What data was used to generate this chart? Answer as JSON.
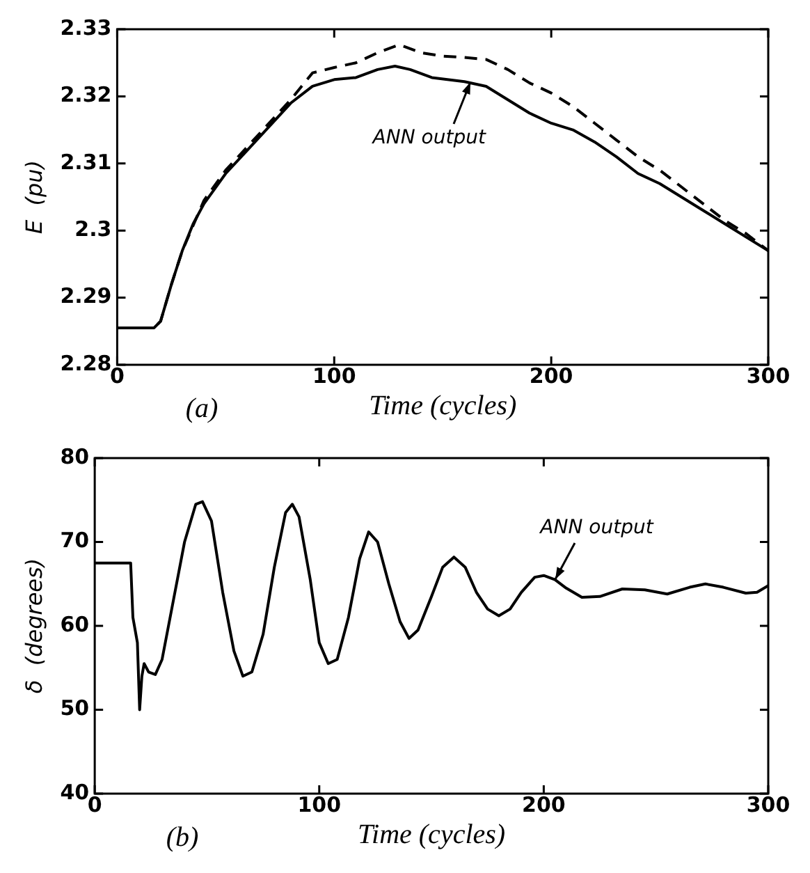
{
  "chart_data": [
    {
      "type": "line",
      "ylabel": "E  (pu)",
      "xlabel": "Time (cycles)",
      "xlim": [
        0,
        300
      ],
      "xticks": [
        0,
        100,
        200,
        300
      ],
      "ylim": [
        2.28,
        2.33
      ],
      "yticks": [
        2.28,
        2.29,
        2.3,
        2.31,
        2.32,
        2.33
      ],
      "grid": false,
      "marker": "none",
      "annotations": [
        "(a)",
        {
          "text": "ANN output",
          "x": 163,
          "y": 2.3222
        }
      ],
      "series": [
        {
          "color": "#000000",
          "line_style": "solid",
          "x": [
            0,
            17,
            20,
            25,
            30,
            35,
            40,
            50,
            60,
            70,
            80,
            90,
            100,
            110,
            120,
            128,
            135,
            145,
            160,
            170,
            180,
            190,
            200,
            210,
            220,
            230,
            240,
            250,
            260,
            270,
            280,
            290,
            300
          ],
          "values": [
            2.2855,
            2.2855,
            2.2865,
            2.292,
            2.297,
            2.301,
            2.304,
            2.3085,
            2.312,
            2.3155,
            2.319,
            2.3215,
            2.3225,
            2.3228,
            2.324,
            2.3245,
            2.324,
            2.3228,
            2.3222,
            2.3215,
            2.3195,
            2.3175,
            2.316,
            2.315,
            2.3132,
            2.311,
            2.3085,
            2.307,
            2.305,
            2.303,
            2.301,
            2.299,
            2.297
          ]
        },
        {
          "color": "#000000",
          "line_style": "dashed",
          "x": [
            0,
            17,
            20,
            25,
            30,
            40,
            50,
            60,
            70,
            80,
            90,
            100,
            110,
            120,
            130,
            140,
            150,
            160,
            170,
            180,
            190,
            200,
            210,
            220,
            230,
            240,
            250,
            260,
            270,
            280,
            290,
            300
          ],
          "values": [
            2.2855,
            2.2855,
            2.2865,
            2.292,
            2.297,
            2.3045,
            2.309,
            2.3125,
            2.316,
            2.3195,
            2.3235,
            2.3243,
            2.325,
            2.3265,
            2.3277,
            2.3265,
            2.326,
            2.3258,
            2.3255,
            2.324,
            2.322,
            2.3205,
            2.3185,
            2.316,
            2.3135,
            2.311,
            2.309,
            2.3065,
            2.304,
            2.3015,
            2.2995,
            2.297
          ]
        }
      ]
    },
    {
      "type": "line",
      "ylabel": "δ  (degrees)",
      "xlabel": "Time (cycles)",
      "xlim": [
        0,
        300
      ],
      "xticks": [
        0,
        100,
        200,
        300
      ],
      "ylim": [
        40,
        80
      ],
      "yticks": [
        40,
        50,
        60,
        70,
        80
      ],
      "grid": false,
      "marker": "none",
      "annotations": [
        "(b)",
        {
          "text": "ANN output",
          "x": 205,
          "y": 65.5
        }
      ],
      "series": [
        {
          "color": "#000000",
          "line_style": "solid",
          "x": [
            0,
            16,
            17,
            19,
            20,
            21,
            22,
            24,
            27,
            30,
            35,
            40,
            45,
            48,
            52,
            57,
            62,
            66,
            70,
            75,
            80,
            85,
            88,
            91,
            96,
            100,
            104,
            108,
            113,
            118,
            122,
            126,
            131,
            136,
            140,
            144,
            150,
            155,
            160,
            165,
            170,
            175,
            180,
            185,
            190,
            196,
            200,
            205,
            210,
            217,
            225,
            235,
            245,
            255,
            265,
            272,
            280,
            290,
            295,
            300
          ],
          "values": [
            67.5,
            67.5,
            61,
            58,
            50,
            54,
            55.5,
            54.5,
            54.2,
            56,
            63,
            70,
            74.5,
            74.8,
            72.5,
            64,
            57,
            54,
            54.5,
            59,
            67,
            73.5,
            74.5,
            73,
            65.5,
            58,
            55.5,
            56,
            61,
            68,
            71.2,
            70,
            65,
            60.5,
            58.5,
            59.5,
            63.5,
            67,
            68.2,
            67,
            64,
            62,
            61.2,
            62,
            64,
            65.8,
            66,
            65.5,
            64.5,
            63.4,
            63.5,
            64.4,
            64.3,
            63.8,
            64.6,
            65,
            64.6,
            63.9,
            64,
            64.8
          ]
        }
      ]
    }
  ]
}
